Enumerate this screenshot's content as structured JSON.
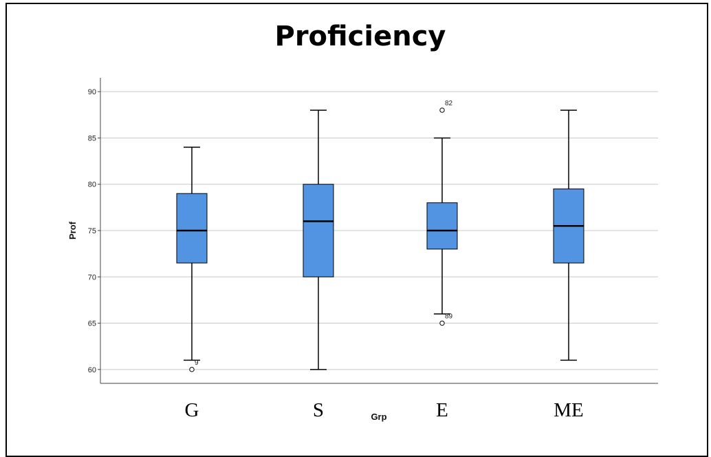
{
  "chart_data": {
    "type": "boxplot",
    "title": "Proficiency",
    "xlabel": "Grp",
    "ylabel": "Prof",
    "ylim": [
      58.5,
      91.5
    ],
    "yticks": [
      60,
      65,
      70,
      75,
      80,
      85,
      90
    ],
    "grid": true,
    "box_color": "#5294e2",
    "categories": [
      "G",
      "S",
      "E",
      "ME"
    ],
    "boxes": [
      {
        "category": "G",
        "whisker_low": 61,
        "q1": 71.5,
        "median": 75,
        "q3": 79,
        "whisker_high": 84,
        "outliers": [
          {
            "value": 60,
            "label": "9"
          }
        ]
      },
      {
        "category": "S",
        "whisker_low": 60,
        "q1": 70,
        "median": 76,
        "q3": 80,
        "whisker_high": 88,
        "outliers": []
      },
      {
        "category": "E",
        "whisker_low": 66,
        "q1": 73,
        "median": 75,
        "q3": 78,
        "whisker_high": 85,
        "outliers": [
          {
            "value": 88,
            "label": "82"
          },
          {
            "value": 65,
            "label": "89"
          }
        ]
      },
      {
        "category": "ME",
        "whisker_low": 61,
        "q1": 71.5,
        "median": 75.5,
        "q3": 79.5,
        "whisker_high": 88,
        "outliers": []
      }
    ]
  }
}
